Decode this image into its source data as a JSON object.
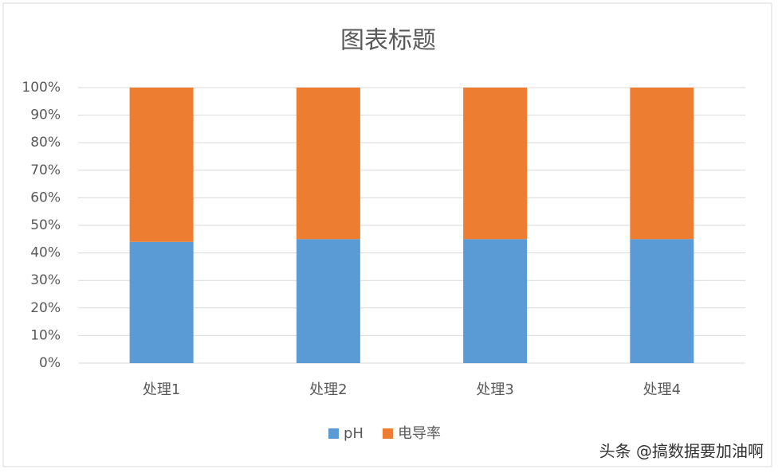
{
  "chart_data": {
    "type": "stacked_percent_bar",
    "title": "图表标题",
    "categories": [
      "处理1",
      "处理2",
      "处理3",
      "处理4"
    ],
    "series": [
      {
        "name": "pH",
        "color": "#5b9bd5",
        "values": [
          44,
          45,
          45,
          45
        ]
      },
      {
        "name": "电导率",
        "color": "#ed7d31",
        "values": [
          56,
          55,
          55,
          55
        ]
      }
    ],
    "ylim": [
      0,
      100
    ],
    "yticks": [
      {
        "value": 0,
        "label": "0%"
      },
      {
        "value": 10,
        "label": "10%"
      },
      {
        "value": 20,
        "label": "20%"
      },
      {
        "value": 30,
        "label": "30%"
      },
      {
        "value": 40,
        "label": "40%"
      },
      {
        "value": 50,
        "label": "50%"
      },
      {
        "value": 60,
        "label": "60%"
      },
      {
        "value": 70,
        "label": "70%"
      },
      {
        "value": 80,
        "label": "80%"
      },
      {
        "value": 90,
        "label": "90%"
      },
      {
        "value": 100,
        "label": "100%"
      }
    ],
    "grid": true,
    "legend": "bottom"
  },
  "watermark": "头条 @搞数据要加油啊"
}
